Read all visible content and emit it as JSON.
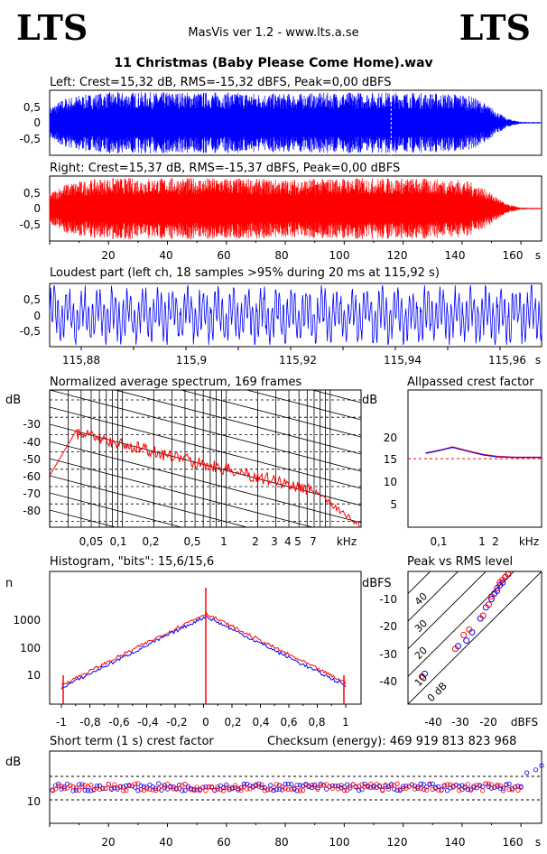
{
  "header": {
    "logo_left": "LTS",
    "logo_right": "LTS",
    "app_title": "MasVis ver 1.2 - www.lts.a.se",
    "file_title": "11 Christmas (Baby Please Come Home).wav"
  },
  "colors": {
    "left": "#0000ff",
    "right": "#ff0000",
    "grid": "#000000"
  },
  "charts": {
    "left_wave": {
      "title": "Left: Crest=15,32 dB, RMS=-15,32 dBFS, Peak=0,00 dBFS",
      "ytick_labels": [
        "0,5",
        "0",
        "-0,5"
      ]
    },
    "right_wave": {
      "title": "Right: Crest=15,37 dB, RMS=-15,37 dBFS, Peak=0,00 dBFS",
      "ytick_labels": [
        "0,5",
        "0",
        "-0,5"
      ],
      "xtick_labels": [
        "20",
        "40",
        "60",
        "80",
        "100",
        "120",
        "140",
        "160"
      ],
      "xunit": "s"
    },
    "loudest": {
      "title": "Loudest part (left  ch, 18 samples >95% during 20 ms at 115,92 s)",
      "ytick_labels": [
        "0,5",
        "0",
        "-0,5"
      ],
      "xtick_labels": [
        "115,88",
        "115,9",
        "115,92",
        "115,94",
        "115,96"
      ],
      "xunit": "s"
    },
    "spectrum": {
      "title": "Normalized average spectrum, 169 frames",
      "ylabel": "dB",
      "ytick_labels": [
        "-30",
        "-40",
        "-50",
        "-60",
        "-70",
        "-80"
      ],
      "xtick_labels": [
        "0,05",
        "0,1",
        "0,2",
        "0,5",
        "1",
        "2",
        "3",
        "4",
        "5",
        "7"
      ],
      "xunit": "kHz"
    },
    "allpass": {
      "title": "Allpassed crest factor",
      "ylabel": "dB",
      "ytick_labels": [
        "20",
        "15",
        "10",
        "5"
      ],
      "xtick_labels": [
        "0,1",
        "1",
        "2"
      ],
      "xunit": "kHz"
    },
    "histogram": {
      "title": "Histogram, \"bits\": 15,6/15,6",
      "ylabel": "n",
      "ytick_labels": [
        "1000",
        "100",
        "10"
      ],
      "xtick_labels": [
        "-1",
        "-0,8",
        "-0,6",
        "-0,4",
        "-0,2",
        "0",
        "0,2",
        "0,4",
        "0,6",
        "0,8",
        "1"
      ]
    },
    "peak_rms": {
      "title": "Peak vs RMS level",
      "ylabel": "dBFS",
      "ytick_labels": [
        "-10",
        "-20",
        "-30",
        "-40"
      ],
      "xtick_labels": [
        "-40",
        "-30",
        "-20"
      ],
      "xunit": "dBFS",
      "diag_labels": [
        "40",
        "30",
        "20",
        "10",
        "0 dB"
      ]
    },
    "short_term": {
      "title": "Short term (1 s) crest factor",
      "checksum": "Checksum (energy):   469 919 813 823 968",
      "ylabel": "dB",
      "ytick_labels": [
        "10"
      ],
      "xtick_labels": [
        "20",
        "40",
        "60",
        "80",
        "100",
        "120",
        "140",
        "160"
      ],
      "xunit": "s"
    }
  },
  "chart_data": [
    {
      "type": "line",
      "name": "left_waveform",
      "x_label": "s",
      "xlim": [
        0,
        167
      ],
      "ylim": [
        -1,
        1
      ],
      "envelope_x": [
        0,
        5,
        10,
        20,
        40,
        60,
        80,
        100,
        120,
        140,
        145,
        150,
        155,
        160,
        167
      ],
      "envelope_amp": [
        0.5,
        0.8,
        0.9,
        1.0,
        1.0,
        1.0,
        0.95,
        1.0,
        1.0,
        0.95,
        0.8,
        0.5,
        0.15,
        0.03,
        0.02
      ],
      "marker_x": 115.92
    },
    {
      "type": "line",
      "name": "right_waveform",
      "xlim": [
        0,
        167
      ],
      "ylim": [
        -1,
        1
      ],
      "envelope_x": [
        0,
        5,
        10,
        20,
        40,
        60,
        80,
        100,
        120,
        140,
        145,
        150,
        155,
        160,
        167
      ],
      "envelope_amp": [
        0.5,
        0.8,
        0.9,
        1.0,
        1.0,
        1.0,
        0.95,
        1.0,
        1.0,
        0.95,
        0.8,
        0.5,
        0.15,
        0.03,
        0.02
      ]
    },
    {
      "type": "line",
      "name": "allpassed_crest_factor",
      "xlim_khz": [
        0.02,
        20
      ],
      "ylim": [
        0,
        25
      ],
      "reference_db": 15.3,
      "x_khz": [
        0.05,
        0.1,
        0.2,
        0.5,
        1,
        2,
        5,
        10,
        20
      ],
      "left_db": [
        16.6,
        17.2,
        17.8,
        16.8,
        16.1,
        15.7,
        15.6,
        15.6,
        15.6
      ],
      "right_db": [
        16.5,
        17.1,
        17.9,
        16.9,
        16.2,
        15.8,
        15.6,
        15.6,
        15.6
      ]
    },
    {
      "type": "scatter",
      "name": "peak_vs_rms",
      "xlim": [
        -48,
        0
      ],
      "ylim": [
        -48,
        0
      ],
      "left_points": [
        [
          -42,
          -37
        ],
        [
          -30,
          -27
        ],
        [
          -27,
          -25
        ],
        [
          -25,
          -22
        ],
        [
          -22,
          -17
        ],
        [
          -20,
          -13
        ],
        [
          -18,
          -10
        ],
        [
          -17,
          -8
        ],
        [
          -16,
          -7
        ],
        [
          -15,
          -5
        ],
        [
          -14,
          -4
        ],
        [
          -13,
          -2
        ],
        [
          -12,
          -1
        ]
      ],
      "right_points": [
        [
          -43,
          -38
        ],
        [
          -31,
          -28
        ],
        [
          -28,
          -23
        ],
        [
          -26,
          -21
        ],
        [
          -21,
          -16
        ],
        [
          -19,
          -12
        ],
        [
          -18,
          -9
        ],
        [
          -16,
          -6
        ],
        [
          -15,
          -4
        ],
        [
          -14,
          -3
        ],
        [
          -13,
          -2
        ],
        [
          -12,
          -1
        ]
      ]
    },
    {
      "type": "scatter",
      "name": "short_term_crest",
      "xlim": [
        0,
        167
      ],
      "ylim": [
        0,
        25
      ],
      "ref_lines_db": [
        10,
        20
      ],
      "mean_db": 12.5,
      "outliers": [
        [
          162,
          17.5
        ],
        [
          165,
          18.5
        ],
        [
          167,
          20
        ]
      ]
    }
  ]
}
